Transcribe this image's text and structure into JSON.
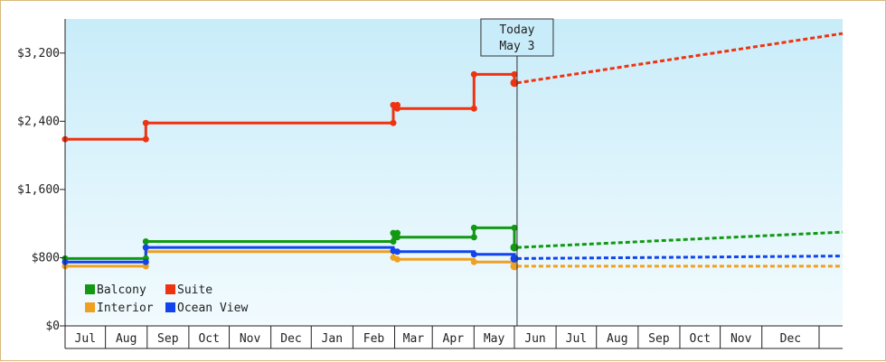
{
  "chart_data": {
    "type": "line",
    "xlabel": "",
    "ylabel": "",
    "ylim": [
      0,
      3600
    ],
    "y_ticks": [
      0,
      800,
      1600,
      2400,
      3200
    ],
    "y_tick_labels": [
      "$0",
      "$800",
      "$1,600",
      "$2,400",
      "$3,200"
    ],
    "x_tick_labels": [
      "Jul",
      "Aug",
      "Sep",
      "Oct",
      "Nov",
      "Dec",
      "Jan",
      "Feb",
      "Mar",
      "Apr",
      "May",
      "Jun",
      "Jul",
      "Aug",
      "Sep",
      "Oct",
      "Nov",
      "Dec"
    ],
    "x_domain": [
      "2025-06-01",
      "2026-12-31"
    ],
    "today": {
      "date": "2026-05-03",
      "line1": "Today",
      "line2": "May 3"
    },
    "legend": {
      "position": "bottom-left"
    },
    "grid": false,
    "series": [
      {
        "name": "Balcony",
        "color": "#119911",
        "history": [
          [
            "2025-06-01",
            790
          ],
          [
            "2025-07-31",
            790
          ],
          [
            "2025-07-31",
            990
          ],
          [
            "2026-01-31",
            990
          ],
          [
            "2026-01-31",
            1090
          ],
          [
            "2026-02-03",
            1090
          ],
          [
            "2026-02-03",
            1040
          ],
          [
            "2026-04-01",
            1040
          ],
          [
            "2026-04-01",
            1150
          ],
          [
            "2026-05-01",
            1150
          ],
          [
            "2026-05-01",
            920
          ]
        ],
        "markers": [
          [
            "2025-06-01",
            790
          ],
          [
            "2025-07-31",
            790
          ],
          [
            "2025-07-31",
            990
          ],
          [
            "2026-01-31",
            990
          ],
          [
            "2026-01-31",
            1090
          ],
          [
            "2026-02-03",
            1090
          ],
          [
            "2026-02-03",
            1040
          ],
          [
            "2026-04-01",
            1040
          ],
          [
            "2026-04-01",
            1150
          ],
          [
            "2026-05-01",
            1150
          ],
          [
            "2026-05-01",
            920
          ]
        ],
        "forecast": [
          [
            "2026-05-03",
            920
          ],
          [
            "2026-12-31",
            1100
          ]
        ]
      },
      {
        "name": "Suite",
        "color": "#ee3311",
        "history": [
          [
            "2025-06-01",
            2190
          ],
          [
            "2025-07-31",
            2190
          ],
          [
            "2025-07-31",
            2380
          ],
          [
            "2026-01-31",
            2380
          ],
          [
            "2026-01-31",
            2590
          ],
          [
            "2026-02-03",
            2590
          ],
          [
            "2026-02-03",
            2550
          ],
          [
            "2026-04-01",
            2550
          ],
          [
            "2026-04-01",
            2950
          ],
          [
            "2026-05-01",
            2950
          ],
          [
            "2026-05-01",
            2850
          ]
        ],
        "markers": [
          [
            "2025-06-01",
            2190
          ],
          [
            "2025-07-31",
            2190
          ],
          [
            "2025-07-31",
            2380
          ],
          [
            "2026-01-31",
            2380
          ],
          [
            "2026-01-31",
            2590
          ],
          [
            "2026-02-03",
            2590
          ],
          [
            "2026-02-03",
            2550
          ],
          [
            "2026-04-01",
            2550
          ],
          [
            "2026-04-01",
            2950
          ],
          [
            "2026-05-01",
            2950
          ],
          [
            "2026-05-01",
            2850
          ]
        ],
        "forecast": [
          [
            "2026-05-03",
            2850
          ],
          [
            "2026-12-31",
            3430
          ]
        ]
      },
      {
        "name": "Interior",
        "color": "#f0a020",
        "history": [
          [
            "2025-06-01",
            700
          ],
          [
            "2025-07-31",
            700
          ],
          [
            "2025-07-31",
            870
          ],
          [
            "2026-01-31",
            870
          ],
          [
            "2026-01-31",
            800
          ],
          [
            "2026-02-03",
            800
          ],
          [
            "2026-02-03",
            780
          ],
          [
            "2026-04-01",
            780
          ],
          [
            "2026-04-01",
            750
          ],
          [
            "2026-05-01",
            750
          ],
          [
            "2026-05-01",
            700
          ]
        ],
        "markers": [
          [
            "2025-06-01",
            700
          ],
          [
            "2025-07-31",
            700
          ],
          [
            "2026-01-31",
            800
          ],
          [
            "2026-02-03",
            780
          ],
          [
            "2026-04-01",
            750
          ],
          [
            "2026-05-01",
            700
          ]
        ],
        "forecast": [
          [
            "2026-05-03",
            700
          ],
          [
            "2026-12-31",
            700
          ]
        ]
      },
      {
        "name": "Ocean View",
        "color": "#1144ee",
        "history": [
          [
            "2025-06-01",
            750
          ],
          [
            "2025-07-31",
            750
          ],
          [
            "2025-07-31",
            920
          ],
          [
            "2026-01-31",
            920
          ],
          [
            "2026-01-31",
            880
          ],
          [
            "2026-02-03",
            880
          ],
          [
            "2026-02-03",
            870
          ],
          [
            "2026-04-01",
            870
          ],
          [
            "2026-04-01",
            840
          ],
          [
            "2026-05-01",
            840
          ],
          [
            "2026-05-01",
            790
          ]
        ],
        "markers": [
          [
            "2025-06-01",
            750
          ],
          [
            "2025-07-31",
            750
          ],
          [
            "2025-07-31",
            920
          ],
          [
            "2026-01-31",
            880
          ],
          [
            "2026-02-03",
            870
          ],
          [
            "2026-04-01",
            840
          ],
          [
            "2026-05-01",
            790
          ]
        ],
        "forecast": [
          [
            "2026-05-03",
            790
          ],
          [
            "2026-12-31",
            820
          ]
        ]
      }
    ],
    "legend_order": [
      "Balcony",
      "Suite",
      "Interior",
      "Ocean View"
    ]
  }
}
